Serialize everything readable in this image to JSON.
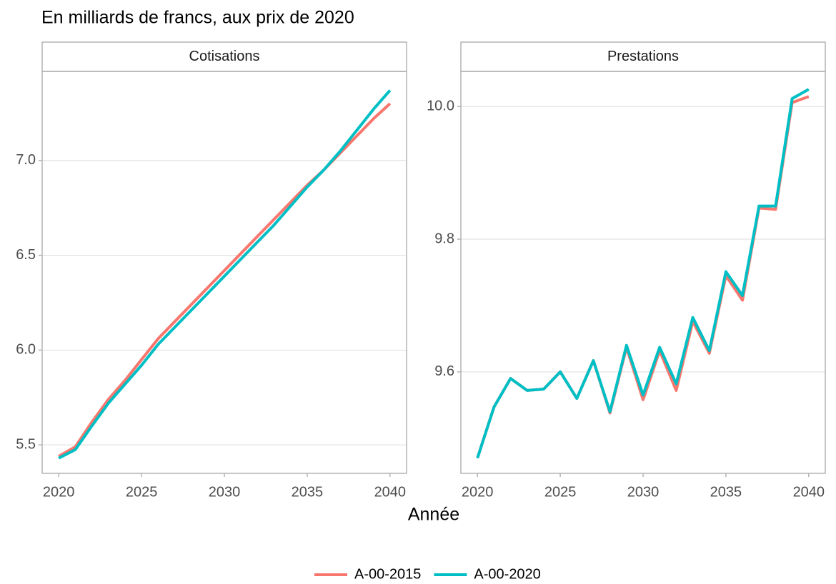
{
  "title": "En milliards de francs, aux prix de 2020",
  "xlabel": "Année",
  "chart_data": [
    {
      "type": "line",
      "title": "Cotisations",
      "x": [
        2020,
        2021,
        2022,
        2023,
        2024,
        2025,
        2026,
        2027,
        2028,
        2029,
        2030,
        2031,
        2032,
        2033,
        2034,
        2035,
        2036,
        2037,
        2038,
        2039,
        2040
      ],
      "series": [
        {
          "name": "A-00-2015",
          "color": "#f8766d",
          "values": [
            5.44,
            5.49,
            5.62,
            5.74,
            5.84,
            5.95,
            6.06,
            6.15,
            6.24,
            6.33,
            6.42,
            6.51,
            6.6,
            6.69,
            6.78,
            6.87,
            6.95,
            7.04,
            7.13,
            7.22,
            7.3
          ]
        },
        {
          "name": "A-00-2020",
          "color": "#00bfc4",
          "values": [
            5.43,
            5.475,
            5.6,
            5.72,
            5.82,
            5.92,
            6.03,
            6.12,
            6.21,
            6.3,
            6.39,
            6.48,
            6.57,
            6.66,
            6.76,
            6.86,
            6.95,
            7.05,
            7.16,
            7.27,
            7.37
          ]
        }
      ],
      "xlim": [
        2019,
        2041
      ],
      "xticks": [
        2020,
        2025,
        2030,
        2035,
        2040
      ],
      "ylim": [
        5.35,
        7.47
      ],
      "yticks": [
        5.5,
        {
          "value": 6,
          "label": "6.0"
        },
        6.5,
        {
          "value": 7,
          "label": "7.0"
        }
      ],
      "grid": true
    },
    {
      "type": "line",
      "title": "Prestations",
      "x": [
        2020,
        2021,
        2022,
        2023,
        2024,
        2025,
        2026,
        2027,
        2028,
        2029,
        2030,
        2031,
        2032,
        2033,
        2034,
        2035,
        2036,
        2037,
        2038,
        2039,
        2040
      ],
      "series": [
        {
          "name": "A-00-2015",
          "color": "#f8766d",
          "values": [
            9.47,
            9.547,
            9.59,
            9.572,
            9.574,
            9.6,
            9.56,
            9.617,
            9.538,
            9.637,
            9.558,
            9.632,
            9.572,
            9.676,
            9.628,
            9.745,
            9.708,
            9.847,
            9.845,
            10.006,
            10.015
          ]
        },
        {
          "name": "A-00-2020",
          "color": "#00bfc4",
          "values": [
            9.47,
            9.547,
            9.59,
            9.572,
            9.574,
            9.6,
            9.56,
            9.617,
            9.54,
            9.64,
            9.565,
            9.637,
            9.582,
            9.682,
            9.632,
            9.751,
            9.715,
            9.85,
            9.85,
            10.012,
            10.026
          ]
        }
      ],
      "xlim": [
        2019,
        2041
      ],
      "xticks": [
        2020,
        2025,
        2030,
        2035,
        2040
      ],
      "ylim": [
        9.447,
        10.053
      ],
      "yticks": [
        9.6,
        9.8,
        {
          "value": 10,
          "label": "10.0"
        }
      ],
      "grid": true
    }
  ]
}
